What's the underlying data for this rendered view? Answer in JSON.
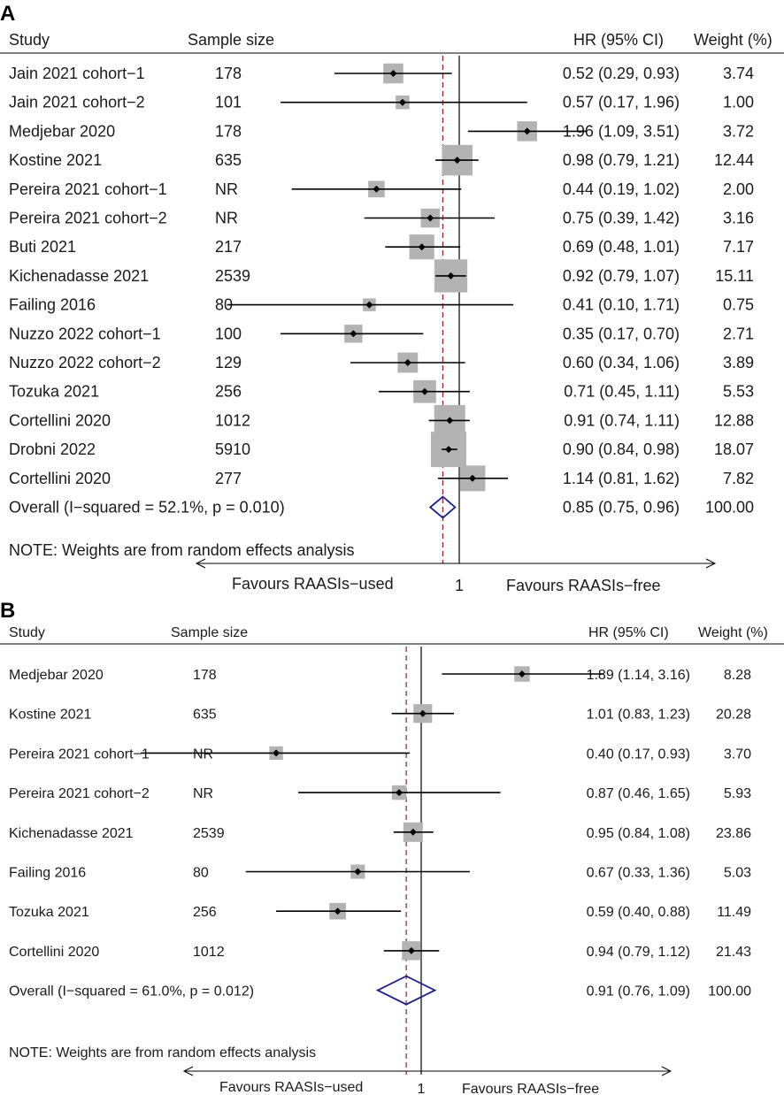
{
  "chart_data": [
    {
      "type": "forest",
      "panel_label": "A",
      "headers": {
        "study": "Study",
        "n": "Sample size",
        "hr": "HR (95% CI)",
        "weight": "Weight (%)"
      },
      "xscale": "log",
      "rows": [
        {
          "study": "Jain 2021 cohort−1",
          "n": "178",
          "hr": 0.52,
          "lo": 0.29,
          "hi": 0.93,
          "hr_text": "0.52 (0.29, 0.93)",
          "weight": 3.74,
          "weight_text": "3.74"
        },
        {
          "study": "Jain 2021 cohort−2",
          "n": "101",
          "hr": 0.57,
          "lo": 0.17,
          "hi": 1.96,
          "hr_text": "0.57 (0.17, 1.96)",
          "weight": 1.0,
          "weight_text": "1.00"
        },
        {
          "study": "Medjebar 2020",
          "n": "178",
          "hr": 1.96,
          "lo": 1.09,
          "hi": 3.51,
          "hr_text": "1.96 (1.09, 3.51)",
          "weight": 3.72,
          "weight_text": "3.72"
        },
        {
          "study": "Kostine 2021",
          "n": "635",
          "hr": 0.98,
          "lo": 0.79,
          "hi": 1.21,
          "hr_text": "0.98 (0.79, 1.21)",
          "weight": 12.44,
          "weight_text": "12.44"
        },
        {
          "study": "Pereira 2021 cohort−1",
          "n": "NR",
          "hr": 0.44,
          "lo": 0.19,
          "hi": 1.02,
          "hr_text": "0.44 (0.19, 1.02)",
          "weight": 2.0,
          "weight_text": "2.00"
        },
        {
          "study": "Pereira 2021 cohort−2",
          "n": "NR",
          "hr": 0.75,
          "lo": 0.39,
          "hi": 1.42,
          "hr_text": "0.75 (0.39, 1.42)",
          "weight": 3.16,
          "weight_text": "3.16"
        },
        {
          "study": "Buti 2021",
          "n": "217",
          "hr": 0.69,
          "lo": 0.48,
          "hi": 1.01,
          "hr_text": "0.69 (0.48, 1.01)",
          "weight": 7.17,
          "weight_text": "7.17"
        },
        {
          "study": "Kichenadasse 2021",
          "n": "2539",
          "hr": 0.92,
          "lo": 0.79,
          "hi": 1.07,
          "hr_text": "0.92 (0.79, 1.07)",
          "weight": 15.11,
          "weight_text": "15.11"
        },
        {
          "study": "Failing 2016",
          "n": "80",
          "hr": 0.41,
          "lo": 0.1,
          "hi": 1.71,
          "hr_text": "0.41 (0.10, 1.71)",
          "weight": 0.75,
          "weight_text": "0.75"
        },
        {
          "study": "Nuzzo 2022 cohort−1",
          "n": "100",
          "hr": 0.35,
          "lo": 0.17,
          "hi": 0.7,
          "hr_text": "0.35 (0.17, 0.70)",
          "weight": 2.71,
          "weight_text": "2.71"
        },
        {
          "study": "Nuzzo 2022 cohort−2",
          "n": "129",
          "hr": 0.6,
          "lo": 0.34,
          "hi": 1.06,
          "hr_text": "0.60 (0.34, 1.06)",
          "weight": 3.89,
          "weight_text": "3.89"
        },
        {
          "study": "Tozuka 2021",
          "n": "256",
          "hr": 0.71,
          "lo": 0.45,
          "hi": 1.11,
          "hr_text": "0.71 (0.45, 1.11)",
          "weight": 5.53,
          "weight_text": "5.53"
        },
        {
          "study": "Cortellini 2020",
          "n": "1012",
          "hr": 0.91,
          "lo": 0.74,
          "hi": 1.11,
          "hr_text": "0.91 (0.74, 1.11)",
          "weight": 12.88,
          "weight_text": "12.88"
        },
        {
          "study": "Drobni 2022",
          "n": "5910",
          "hr": 0.9,
          "lo": 0.84,
          "hi": 0.98,
          "hr_text": "0.90 (0.84, 0.98)",
          "weight": 18.07,
          "weight_text": "18.07"
        },
        {
          "study": "Cortellini 2020",
          "n": "277",
          "hr": 1.14,
          "lo": 0.81,
          "hi": 1.62,
          "hr_text": "1.14 (0.81, 1.62)",
          "weight": 7.82,
          "weight_text": "7.82"
        }
      ],
      "overall": {
        "label": "Overall  (I−squared = 52.1%, p = 0.010)",
        "hr": 0.85,
        "lo": 0.75,
        "hi": 0.96,
        "hr_text": "0.85 (0.75, 0.96)",
        "weight_text": "100.00"
      },
      "note": "NOTE: Weights are from random effects analysis",
      "null_value": 1,
      "null_label": "1",
      "favours_left": "Favours RAASIs−used",
      "favours_right": "Favours RAASIs−free",
      "colors": {
        "box": "#b3b3b3",
        "line": "#000000",
        "diamond": "#1f1f8a",
        "ref": "#9b1b1b"
      }
    },
    {
      "type": "forest",
      "panel_label": "B",
      "headers": {
        "study": "Study",
        "n": "Sample size",
        "hr": "HR (95% CI)",
        "weight": "Weight (%)"
      },
      "xscale": "log",
      "rows": [
        {
          "study": "Medjebar 2020",
          "n": "178",
          "hr": 1.89,
          "lo": 1.14,
          "hi": 3.16,
          "hr_text": "1.89 (1.14, 3.16)",
          "weight": 8.28,
          "weight_text": "8.28"
        },
        {
          "study": "Kostine 2021",
          "n": "635",
          "hr": 1.01,
          "lo": 0.83,
          "hi": 1.23,
          "hr_text": "1.01 (0.83, 1.23)",
          "weight": 20.28,
          "weight_text": "20.28"
        },
        {
          "study": "Pereira 2021 cohort−1",
          "n": "NR",
          "hr": 0.4,
          "lo": 0.17,
          "hi": 0.93,
          "hr_text": "0.40 (0.17, 0.93)",
          "weight": 3.7,
          "weight_text": "3.70"
        },
        {
          "study": "Pereira 2021 cohort−2",
          "n": "NR",
          "hr": 0.87,
          "lo": 0.46,
          "hi": 1.65,
          "hr_text": "0.87 (0.46, 1.65)",
          "weight": 5.93,
          "weight_text": "5.93"
        },
        {
          "study": "Kichenadasse 2021",
          "n": "2539",
          "hr": 0.95,
          "lo": 0.84,
          "hi": 1.08,
          "hr_text": "0.95 (0.84, 1.08)",
          "weight": 23.86,
          "weight_text": "23.86"
        },
        {
          "study": "Failing 2016",
          "n": "80",
          "hr": 0.67,
          "lo": 0.33,
          "hi": 1.36,
          "hr_text": "0.67 (0.33, 1.36)",
          "weight": 5.03,
          "weight_text": "5.03"
        },
        {
          "study": "Tozuka 2021",
          "n": "256",
          "hr": 0.59,
          "lo": 0.4,
          "hi": 0.88,
          "hr_text": "0.59 (0.40, 0.88)",
          "weight": 11.49,
          "weight_text": "11.49"
        },
        {
          "study": "Cortellini 2020",
          "n": "1012",
          "hr": 0.94,
          "lo": 0.79,
          "hi": 1.12,
          "hr_text": "0.94 (0.79, 1.12)",
          "weight": 21.43,
          "weight_text": "21.43"
        }
      ],
      "overall": {
        "label": "Overall  (I−squared = 61.0%, p = 0.012)",
        "hr": 0.91,
        "lo": 0.76,
        "hi": 1.09,
        "hr_text": "0.91 (0.76, 1.09)",
        "weight_text": "100.00"
      },
      "note": "NOTE: Weights are from random effects analysis",
      "null_value": 1,
      "null_label": "1",
      "favours_left": "Favours RAASIs−used",
      "favours_right": "Favours RAASIs−free",
      "colors": {
        "box": "#b3b3b3",
        "line": "#000000",
        "diamond": "#1f1f8a",
        "ref": "#9b1b1b"
      }
    }
  ]
}
